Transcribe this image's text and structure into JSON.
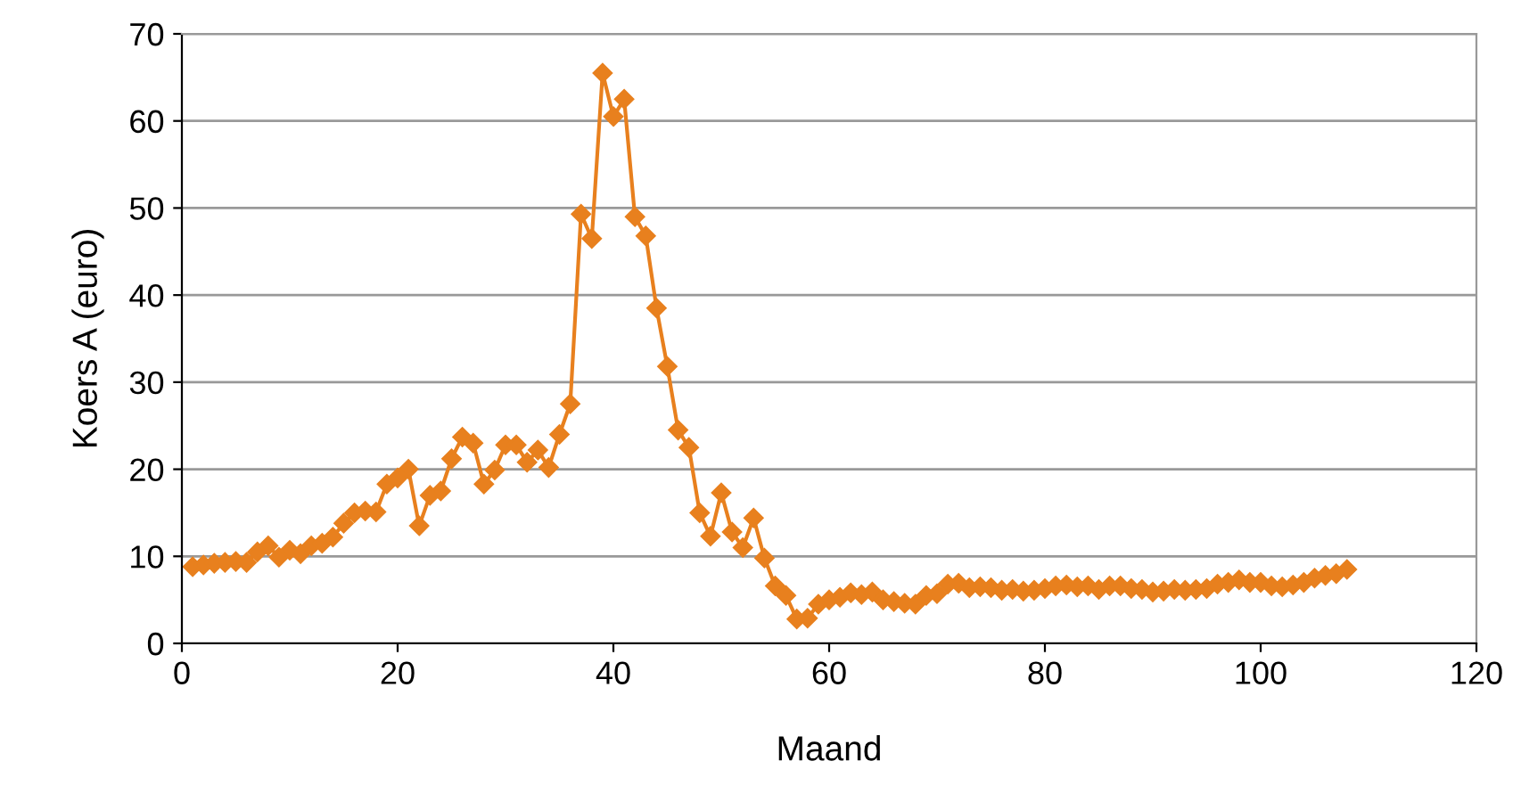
{
  "chart_data": {
    "type": "line",
    "xlabel": "Maand",
    "ylabel": "Koers A (euro)",
    "x": [
      1,
      2,
      3,
      4,
      5,
      6,
      7,
      8,
      9,
      10,
      11,
      12,
      13,
      14,
      15,
      16,
      17,
      18,
      19,
      20,
      21,
      22,
      23,
      24,
      25,
      26,
      27,
      28,
      29,
      30,
      31,
      32,
      33,
      34,
      35,
      36,
      37,
      38,
      39,
      40,
      41,
      42,
      43,
      44,
      45,
      46,
      47,
      48,
      49,
      50,
      51,
      52,
      53,
      54,
      55,
      56,
      57,
      58,
      59,
      60,
      61,
      62,
      63,
      64,
      65,
      66,
      67,
      68,
      69,
      70,
      71,
      72,
      73,
      74,
      75,
      76,
      77,
      78,
      79,
      80,
      81,
      82,
      83,
      84,
      85,
      86,
      87,
      88,
      89,
      90,
      91,
      92,
      93,
      94,
      95,
      96,
      97,
      98,
      99,
      100,
      101,
      102,
      103,
      104,
      105,
      106,
      107,
      108
    ],
    "series": [
      {
        "color": "#e8801e",
        "values": [
          8.8,
          9.0,
          9.2,
          9.3,
          9.4,
          9.3,
          10.5,
          11.2,
          9.9,
          10.7,
          10.3,
          11.2,
          11.5,
          12.2,
          13.8,
          15.0,
          15.2,
          15.1,
          18.3,
          19.0,
          20.0,
          13.5,
          17.0,
          17.5,
          21.2,
          23.7,
          23.0,
          18.3,
          19.9,
          22.8,
          22.8,
          20.8,
          22.2,
          20.2,
          24.0,
          27.5,
          49.3,
          46.5,
          65.5,
          60.5,
          62.5,
          49.0,
          46.8,
          38.5,
          31.8,
          24.5,
          22.5,
          15.0,
          12.3,
          17.3,
          12.8,
          11.0,
          14.4,
          9.8,
          6.6,
          5.5,
          2.8,
          2.9,
          4.5,
          5.0,
          5.3,
          5.8,
          5.6,
          5.9,
          5.0,
          4.8,
          4.6,
          4.5,
          5.5,
          5.7,
          6.8,
          6.9,
          6.4,
          6.5,
          6.4,
          6.1,
          6.2,
          6.0,
          6.1,
          6.3,
          6.6,
          6.7,
          6.5,
          6.6,
          6.2,
          6.6,
          6.6,
          6.3,
          6.2,
          5.9,
          6.0,
          6.2,
          6.1,
          6.2,
          6.3,
          6.8,
          7.0,
          7.3,
          7.0,
          7.0,
          6.6,
          6.5,
          6.7,
          7.0,
          7.5,
          7.8,
          8.0,
          8.5
        ]
      }
    ],
    "xlim": [
      0,
      120
    ],
    "xticks": [
      0,
      20,
      40,
      60,
      80,
      100,
      120
    ],
    "ylim": [
      0,
      70
    ],
    "yticks": [
      0,
      10,
      20,
      30,
      40,
      50,
      60,
      70
    ],
    "grid": "y",
    "marker": "diamond",
    "line_style": "solid"
  }
}
